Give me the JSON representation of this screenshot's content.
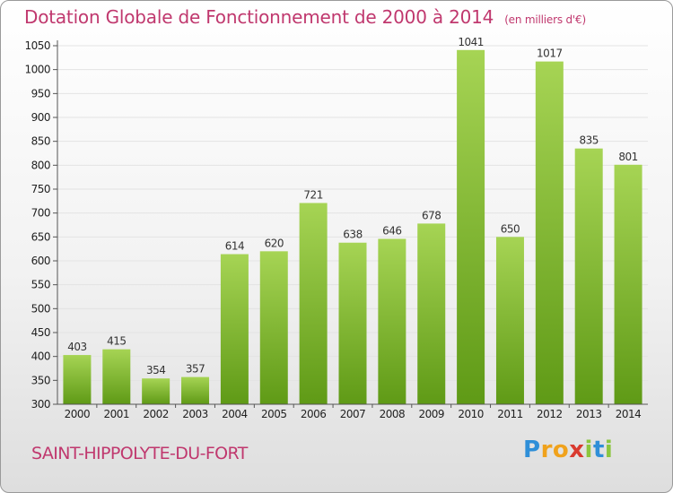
{
  "title": "Dotation Globale de Fonctionnement de 2000 à 2014",
  "subtitle": "(en milliers d'€)",
  "commune": "SAINT-HIPPOLYTE-DU-FORT",
  "logo": {
    "text": "Proxiti",
    "letters": [
      "P",
      "r",
      "o",
      "x",
      "i",
      "t",
      "i"
    ],
    "colors": [
      "#2f8fd8",
      "#f0a21c",
      "#f0a21c",
      "#d93a2f",
      "#8cc63f",
      "#2f8fd8",
      "#8cc63f"
    ]
  },
  "colors": {
    "title": "#c0386e",
    "bar_top": "#a6d454",
    "bar_bottom": "#5f9a16",
    "grid": "#e3e3e3",
    "axis": "#555555"
  },
  "chart_data": {
    "type": "bar",
    "categories": [
      "2000",
      "2001",
      "2002",
      "2003",
      "2004",
      "2005",
      "2006",
      "2007",
      "2008",
      "2009",
      "2010",
      "2011",
      "2012",
      "2013",
      "2014"
    ],
    "values": [
      403,
      415,
      354,
      357,
      614,
      620,
      721,
      638,
      646,
      678,
      1041,
      650,
      1017,
      835,
      801
    ],
    "ylim": [
      300,
      1050
    ],
    "yticks": [
      300,
      350,
      400,
      450,
      500,
      550,
      600,
      650,
      700,
      750,
      800,
      850,
      900,
      950,
      1000,
      1050
    ],
    "grid": true,
    "xlabel": "",
    "ylabel": ""
  }
}
